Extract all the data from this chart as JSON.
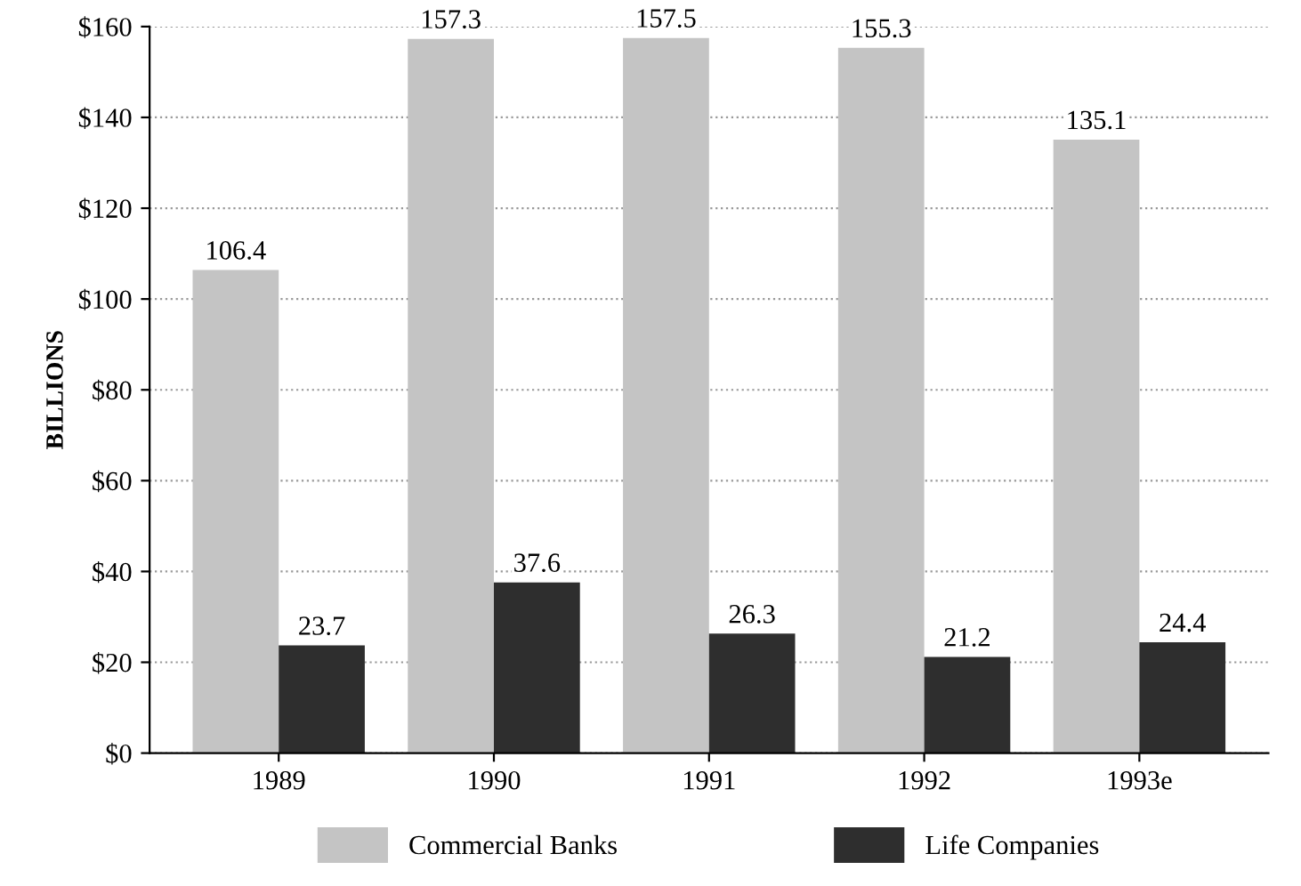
{
  "chart_data": {
    "type": "bar",
    "ylabel": "BILLIONS",
    "categories": [
      "1989",
      "1990",
      "1991",
      "1992",
      "1993e"
    ],
    "series": [
      {
        "name": "Commercial Banks",
        "color": "#c4c4c4",
        "values": [
          106.4,
          157.3,
          157.5,
          155.3,
          135.1
        ]
      },
      {
        "name": "Life Companies",
        "color": "#2e2e2e",
        "values": [
          23.7,
          37.6,
          26.3,
          21.2,
          24.4
        ]
      }
    ],
    "ylim": [
      0,
      160
    ],
    "yticks": [
      {
        "value": 0,
        "label": "$0"
      },
      {
        "value": 20,
        "label": "$20"
      },
      {
        "value": 40,
        "label": "$40"
      },
      {
        "value": 60,
        "label": "$60"
      },
      {
        "value": 80,
        "label": "$80"
      },
      {
        "value": 100,
        "label": "$100"
      },
      {
        "value": 120,
        "label": "$120"
      },
      {
        "value": 140,
        "label": "$140"
      },
      {
        "value": 160,
        "label": "$160"
      }
    ],
    "grid": "y",
    "legend": "bottom",
    "data_labels": true
  }
}
